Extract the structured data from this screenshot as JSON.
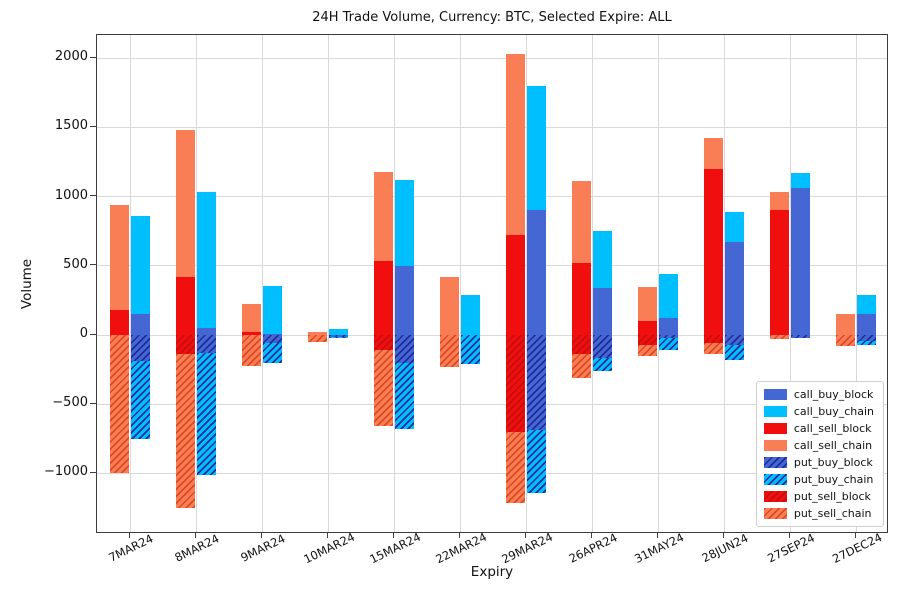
{
  "chart_data": {
    "type": "bar",
    "title": "24H Trade Volume, Currency: BTC, Selected Expire: ALL",
    "xlabel": "Expiry",
    "ylabel": "Volume",
    "ylim": [
      -1440,
      2170
    ],
    "yticks": [
      2000,
      1500,
      1000,
      500,
      0,
      -500,
      -1000
    ],
    "grid": true,
    "legend_position": "lower right",
    "bar_structure": "two stacked bars per category: sell (left, red/coral) and buy (right, royalblue/deepskyblue); call_* stack upward from 0, put_* are hatched and stack downward from 0",
    "categories": [
      "7MAR24",
      "8MAR24",
      "9MAR24",
      "10MAR24",
      "15MAR24",
      "22MAR24",
      "29MAR24",
      "26APR24",
      "31MAY24",
      "28JUN24",
      "27SEP24",
      "27DEC24"
    ],
    "series": [
      {
        "name": "call_buy_block",
        "bar": "buy",
        "color": "#4467d3",
        "hatch": false,
        "values": [
          150,
          50,
          10,
          0,
          500,
          0,
          900,
          340,
          125,
          675,
          1065,
          150
        ]
      },
      {
        "name": "call_buy_chain",
        "bar": "buy",
        "color": "#00bfff",
        "hatch": false,
        "values": [
          710,
          985,
          345,
          45,
          620,
          290,
          900,
          410,
          315,
          215,
          105,
          140
        ]
      },
      {
        "name": "call_sell_block",
        "bar": "sell",
        "color": "#f10e0e",
        "hatch": false,
        "values": [
          180,
          420,
          20,
          0,
          535,
          0,
          725,
          520,
          100,
          1200,
          905,
          0
        ]
      },
      {
        "name": "call_sell_chain",
        "bar": "sell",
        "color": "#f97e55",
        "hatch": false,
        "values": [
          760,
          1060,
          205,
          25,
          645,
          420,
          1305,
          590,
          250,
          220,
          130,
          150
        ]
      },
      {
        "name": "put_buy_block",
        "bar": "buy",
        "color": "#4467d3",
        "hatch": true,
        "hatch_color": "#1e2d9a",
        "values": [
          -190,
          -130,
          -60,
          -15,
          -200,
          0,
          -685,
          -165,
          -25,
          -75,
          -25,
          -45
        ]
      },
      {
        "name": "put_buy_chain",
        "bar": "buy",
        "color": "#00bfff",
        "hatch": true,
        "hatch_color": "#1e2d9a",
        "values": [
          -560,
          -880,
          -140,
          -10,
          -480,
          -210,
          -455,
          -95,
          -80,
          -105,
          0,
          -25
        ]
      },
      {
        "name": "put_sell_block",
        "bar": "sell",
        "color": "#f10e0e",
        "hatch": true,
        "hatch_color": "#c40d0d",
        "values": [
          0,
          -135,
          0,
          0,
          -105,
          0,
          -700,
          -140,
          -70,
          -60,
          0,
          0
        ]
      },
      {
        "name": "put_sell_chain",
        "bar": "sell",
        "color": "#f97e55",
        "hatch": true,
        "hatch_color": "#dd4a22",
        "values": [
          -1000,
          -1115,
          -225,
          -50,
          -555,
          -230,
          -515,
          -170,
          -80,
          -80,
          -30,
          -80
        ]
      }
    ]
  },
  "colors": {
    "background": "#ffffff",
    "grid": "#d9d9d9",
    "spine": "#3c3c3c",
    "text": "#111111",
    "legend_border": "#cfcfcf"
  }
}
